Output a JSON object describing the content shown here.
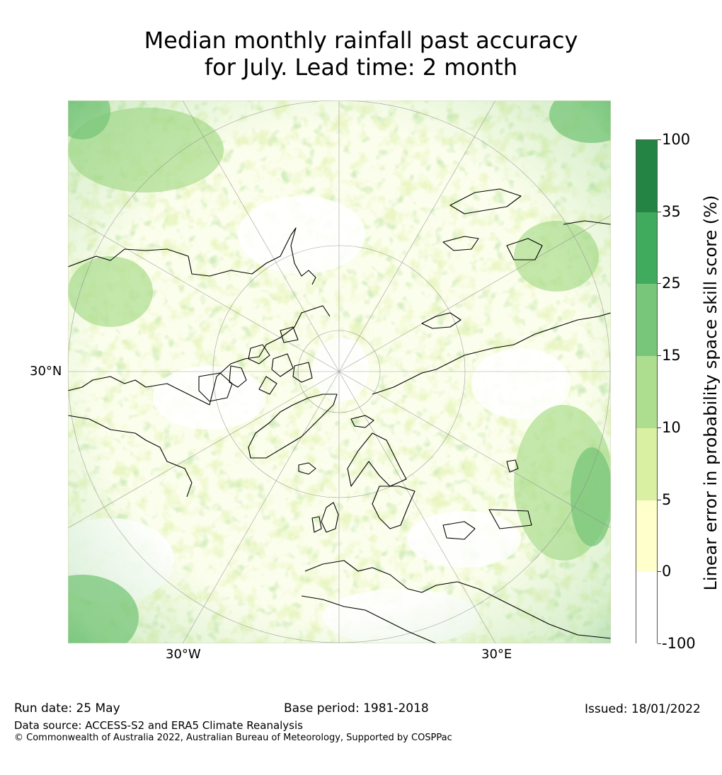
{
  "title": {
    "line1": "Median monthly rainfall past accuracy",
    "line2": "for July. Lead time: 2 month"
  },
  "map": {
    "projection": "north-polar-stereographic",
    "lat_label": "30°N",
    "lon_labels": [
      "30°W",
      "30°E"
    ]
  },
  "colorbar": {
    "label": "Linear error in probability space skill score (%)",
    "ticks": [
      "100",
      "35",
      "25",
      "15",
      "10",
      "5",
      "0",
      "-100"
    ],
    "bins": [
      {
        "from": "35",
        "to": "100",
        "color": "#238443"
      },
      {
        "from": "25",
        "to": "35",
        "color": "#41ab5d"
      },
      {
        "from": "15",
        "to": "25",
        "color": "#78c679"
      },
      {
        "from": "10",
        "to": "15",
        "color": "#addd8e"
      },
      {
        "from": "5",
        "to": "10",
        "color": "#d9f0a3"
      },
      {
        "from": "0",
        "to": "5",
        "color": "#ffffcc"
      },
      {
        "from": "-100",
        "to": "0",
        "color": "#ffffff"
      }
    ]
  },
  "footer": {
    "run_date": "Run date: 25 May",
    "base_period": "Base period: 1981-2018",
    "issued": "Issued: 18/01/2022",
    "data_source": "Data source: ACCESS-S2 and ERA5 Climate Reanalysis",
    "copyright": "© Commonwealth of Australia 2022, Australian Bureau of Meteorology, Supported by COSPPac"
  }
}
